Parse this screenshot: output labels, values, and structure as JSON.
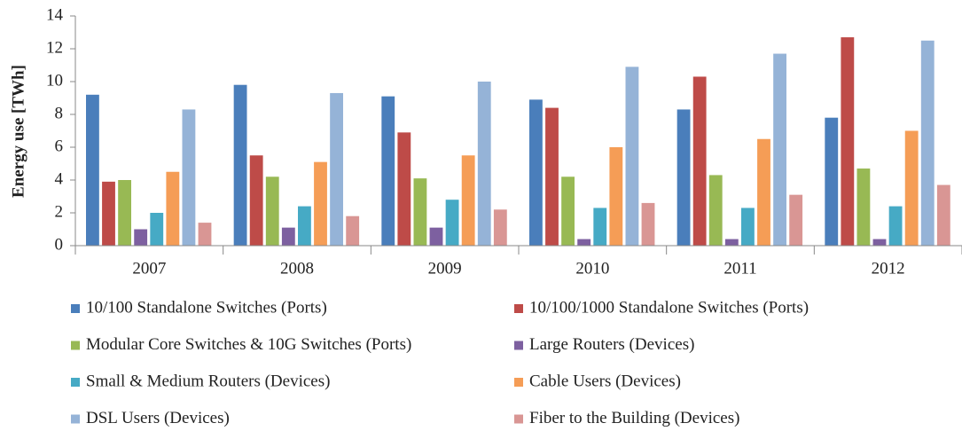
{
  "chart_data": {
    "type": "bar",
    "y_label": "Energy use [TWh]",
    "categories": [
      "2007",
      "2008",
      "2009",
      "2010",
      "2011",
      "2012"
    ],
    "series": [
      {
        "name": "10/100 Standalone Switches (Ports)",
        "color": "#4a7ebb",
        "values": [
          9.2,
          9.8,
          9.1,
          8.9,
          8.3,
          7.8
        ]
      },
      {
        "name": "10/100/1000 Standalone Switches (Ports)",
        "color": "#be4b48",
        "values": [
          3.9,
          5.5,
          6.9,
          8.4,
          10.3,
          12.7
        ]
      },
      {
        "name": "Modular Core Switches & 10G Switches (Ports)",
        "color": "#98b954",
        "values": [
          4.0,
          4.2,
          4.1,
          4.2,
          4.3,
          4.7
        ]
      },
      {
        "name": "Large Routers (Devices)",
        "color": "#7d60a0",
        "values": [
          1.0,
          1.1,
          1.1,
          0.4,
          0.4,
          0.4
        ]
      },
      {
        "name": "Small & Medium Routers (Devices)",
        "color": "#46aac5",
        "values": [
          2.0,
          2.4,
          2.8,
          2.3,
          2.3,
          2.4
        ]
      },
      {
        "name": "Cable Users (Devices)",
        "color": "#f59d56",
        "values": [
          4.5,
          5.1,
          5.5,
          6.0,
          6.5,
          7.0
        ]
      },
      {
        "name": "DSL Users (Devices)",
        "color": "#95b3d7",
        "values": [
          8.3,
          9.3,
          10.0,
          10.9,
          11.7,
          12.5
        ]
      },
      {
        "name": "Fiber to the Building (Devices)",
        "color": "#d99694",
        "values": [
          1.4,
          1.8,
          2.2,
          2.6,
          3.1,
          3.7
        ]
      }
    ],
    "ylim": [
      0,
      14
    ],
    "yticks": [
      0,
      2,
      4,
      6,
      8,
      10,
      12,
      14
    ],
    "grid": false
  }
}
